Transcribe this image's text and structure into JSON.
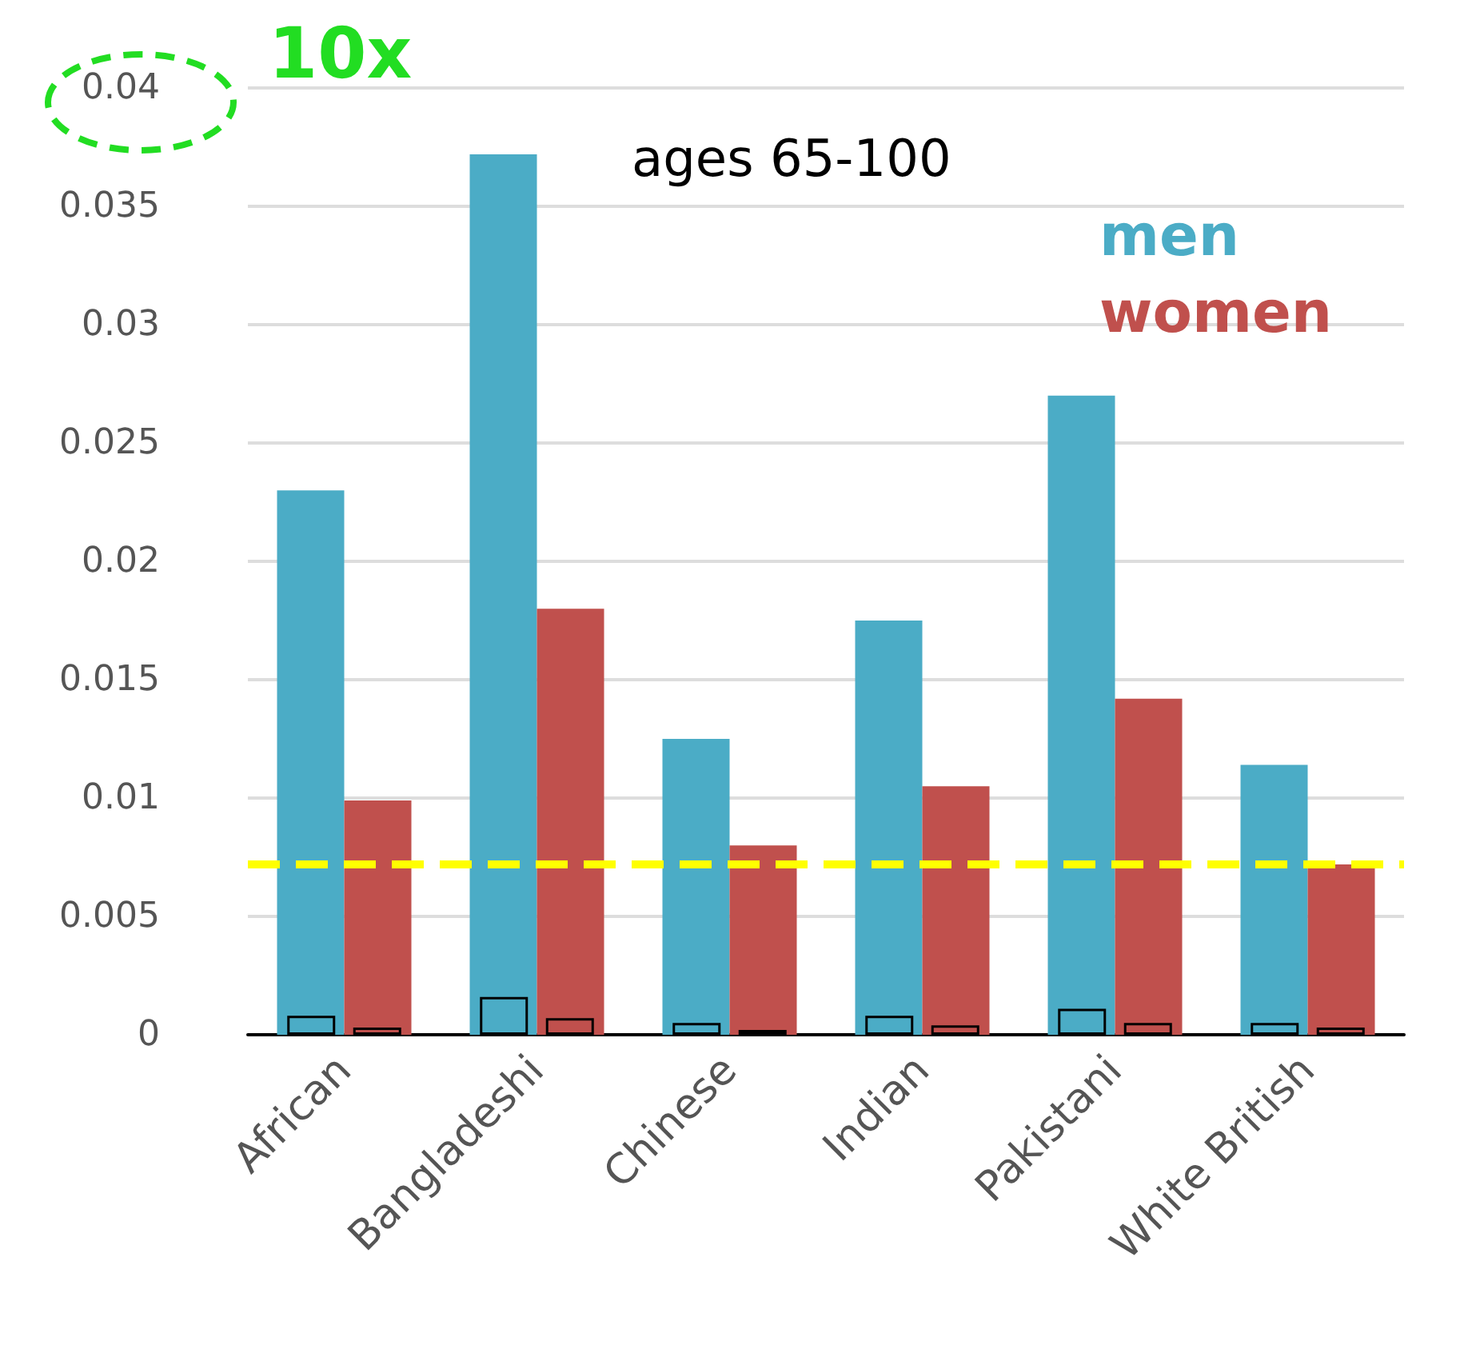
{
  "chart_data": {
    "type": "bar",
    "title": "ages 65-100",
    "categories": [
      "African",
      "Bangladeshi",
      "Chinese",
      "Indian",
      "Pakistani",
      "White British"
    ],
    "series": [
      {
        "name": "men",
        "color": "#4bacc6",
        "values": [
          0.023,
          0.0372,
          0.0125,
          0.0175,
          0.027,
          0.0114
        ]
      },
      {
        "name": "women",
        "color": "#c0504d",
        "values": [
          0.0099,
          0.018,
          0.008,
          0.0105,
          0.0142,
          0.0072
        ]
      },
      {
        "color": "#4bacc6",
        "values": [
          0.0008,
          0.0016,
          0.0005,
          0.0008,
          0.0011,
          0.0005
        ]
      },
      {
        "color": "#c0504d",
        "values": [
          0.0003,
          0.0007,
          0.0002,
          0.0004,
          0.0005,
          0.0003
        ]
      }
    ],
    "ylim": [
      0,
      0.04
    ],
    "yticks": [
      0,
      0.005,
      0.01,
      0.015,
      0.02,
      0.025,
      0.03,
      0.035,
      0.04
    ],
    "grid": "y",
    "legend": "top right",
    "annotations": [
      "10x"
    ],
    "ref_lines": [
      {
        "axis": "y",
        "value": 0.0072,
        "color": "#ffff00",
        "line_style": "dashed"
      }
    ]
  }
}
